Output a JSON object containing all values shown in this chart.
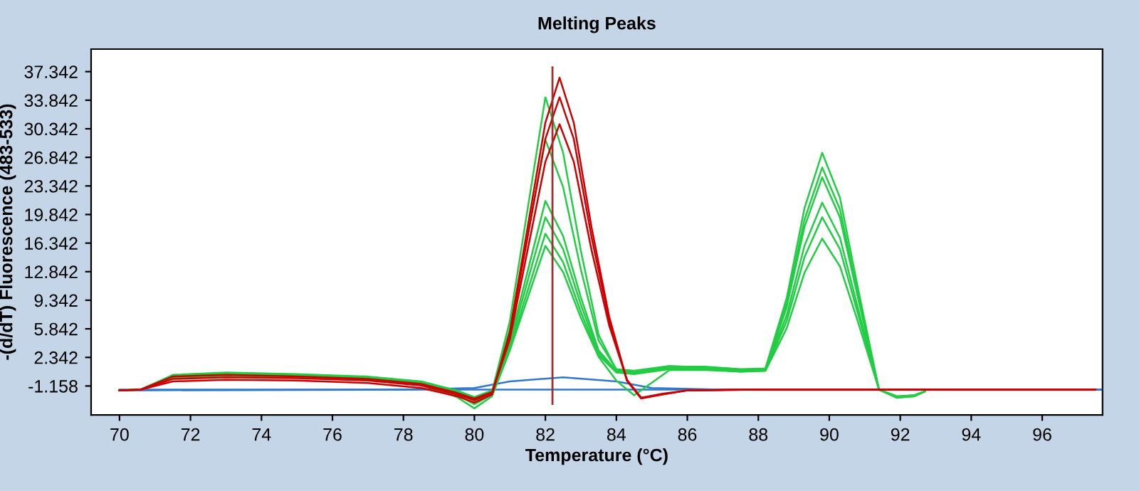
{
  "chart_data": {
    "type": "line",
    "title": "Melting Peaks",
    "xlabel": "Temperature (°C)",
    "ylabel": "-(d/dT) Fluorescence (483-533)",
    "xlim": [
      69.2,
      97.7
    ],
    "ylim": [
      -4.7,
      40.1
    ],
    "xticks": [
      70,
      72,
      74,
      76,
      78,
      80,
      82,
      84,
      86,
      88,
      90,
      92,
      94,
      96
    ],
    "yticks": [
      {
        "value": -1.158,
        "label": "-1.158"
      },
      {
        "value": 2.342,
        "label": "2.342"
      },
      {
        "value": 5.842,
        "label": "5.842"
      },
      {
        "value": 9.342,
        "label": "9.342"
      },
      {
        "value": 12.842,
        "label": "12.842"
      },
      {
        "value": 16.342,
        "label": "16.342"
      },
      {
        "value": 19.842,
        "label": "19.842"
      },
      {
        "value": 23.342,
        "label": "23.342"
      },
      {
        "value": 26.842,
        "label": "26.842"
      },
      {
        "value": 30.342,
        "label": "30.342"
      },
      {
        "value": 33.842,
        "label": "33.842"
      },
      {
        "value": 37.342,
        "label": "37.342"
      }
    ],
    "grid": false,
    "legend": false,
    "marker": "none",
    "line_style": "solid",
    "ref_lines": [
      {
        "axis": "x",
        "value": 82.2,
        "color": "#a03030"
      }
    ],
    "series": [
      {
        "color": "#3377cc",
        "x": [
          70,
          97.7
        ],
        "values": [
          -1.6,
          -1.6
        ]
      },
      {
        "color": "#3377cc",
        "x": [
          70,
          78,
          80,
          81,
          82.5,
          84,
          85,
          87,
          97.7
        ],
        "values": [
          -1.7,
          -1.6,
          -1.4,
          -0.6,
          -0.1,
          -0.6,
          -1.4,
          -1.6,
          -1.6
        ]
      },
      {
        "color": "#22cc44",
        "x": [
          70,
          70.6,
          71.5,
          73,
          75,
          77,
          78.5,
          79.5,
          80.0,
          80.5,
          81.0,
          81.5,
          82.0,
          82.5,
          83.0,
          83.5,
          84.0,
          84.5,
          85.5,
          86.5,
          87.5,
          88.2,
          88.8,
          89.3,
          89.8,
          90.3,
          90.8,
          91.4,
          91.9,
          92.4,
          92.7
        ],
        "values": [
          -1.7,
          -1.6,
          0.0,
          0.3,
          0.1,
          -0.2,
          -0.8,
          -1.8,
          -2.6,
          -1.8,
          6.8,
          20.5,
          34.2,
          27.4,
          15.4,
          5.1,
          0.8,
          0.6,
          1.2,
          1.2,
          0.9,
          1.0,
          9.6,
          20.6,
          27.4,
          21.9,
          11.0,
          -1.6,
          -2.5,
          -2.4,
          -1.8
        ]
      },
      {
        "color": "#22cc44",
        "x": [
          70,
          70.6,
          71.5,
          73,
          75,
          77,
          78.5,
          79.5,
          80.0,
          80.5,
          81.0,
          81.5,
          82.0,
          82.5,
          83.0,
          83.5,
          84.0,
          84.5,
          85.5,
          86.5,
          87.5,
          88.2,
          88.8,
          89.3,
          89.8,
          90.3,
          90.8,
          91.4,
          91.9,
          92.4,
          92.7
        ],
        "values": [
          -1.7,
          -1.6,
          0.1,
          0.4,
          0.2,
          -0.1,
          -0.7,
          -1.9,
          -2.8,
          -1.9,
          5.8,
          17.4,
          29.0,
          23.2,
          13.1,
          4.4,
          0.9,
          0.7,
          1.3,
          1.1,
          0.8,
          0.9,
          9.0,
          19.2,
          25.6,
          20.5,
          10.2,
          -1.6,
          -2.4,
          -2.3,
          -1.8
        ]
      },
      {
        "color": "#22cc44",
        "x": [
          70,
          70.6,
          71.5,
          73,
          75,
          77,
          78.5,
          79.5,
          80.0,
          80.5,
          81.0,
          81.5,
          82.0,
          82.5,
          83.0,
          83.5,
          84.0,
          84.5,
          85.5,
          86.5,
          87.5,
          88.2,
          88.8,
          89.3,
          89.8,
          90.3,
          90.8,
          91.4,
          91.9,
          92.4,
          92.7
        ],
        "values": [
          -1.7,
          -1.6,
          -0.1,
          0.2,
          0.0,
          -0.3,
          -0.9,
          -2.0,
          -3.0,
          -2.0,
          4.3,
          12.9,
          21.5,
          17.2,
          9.7,
          3.2,
          0.7,
          0.5,
          1.1,
          1.0,
          0.7,
          0.8,
          8.5,
          18.3,
          24.4,
          19.5,
          9.8,
          -1.6,
          -2.6,
          -2.4,
          -1.8
        ]
      },
      {
        "color": "#22cc44",
        "x": [
          70,
          70.6,
          71.5,
          73,
          75,
          77,
          78.5,
          79.5,
          80.0,
          80.5,
          81.0,
          81.5,
          82.0,
          82.5,
          83.0,
          83.5,
          84.0,
          84.5,
          85.5,
          86.5,
          87.5,
          88.2,
          88.8,
          89.3,
          89.8,
          90.3,
          90.8,
          91.4,
          91.9,
          92.4,
          92.7
        ],
        "values": [
          -1.7,
          -1.6,
          0.2,
          0.5,
          0.3,
          0.0,
          -0.6,
          -1.7,
          -2.5,
          -1.7,
          3.9,
          11.7,
          19.5,
          15.6,
          8.8,
          2.9,
          0.6,
          0.4,
          1.0,
          1.0,
          0.7,
          0.8,
          7.5,
          16.0,
          21.3,
          17.0,
          8.5,
          -1.6,
          -2.5,
          -2.3,
          -1.8
        ]
      },
      {
        "color": "#22cc44",
        "x": [
          70,
          70.6,
          71.5,
          73,
          75,
          77,
          78.5,
          79.5,
          80.0,
          80.5,
          81.0,
          81.5,
          82.0,
          82.5,
          83.0,
          83.5,
          84.0,
          84.5,
          85.5,
          86.5,
          87.5,
          88.2,
          88.8,
          89.3,
          89.8,
          90.3,
          90.8,
          91.4,
          91.9,
          92.4,
          92.7
        ],
        "values": [
          -1.7,
          -1.6,
          0.0,
          0.3,
          0.1,
          -0.2,
          -0.8,
          -2.2,
          -3.4,
          -2.2,
          3.5,
          10.5,
          17.5,
          14.0,
          7.9,
          2.6,
          0.5,
          0.3,
          0.9,
          0.9,
          0.6,
          0.7,
          6.8,
          14.6,
          19.5,
          15.6,
          7.8,
          -1.6,
          -2.6,
          -2.4,
          -1.8
        ]
      },
      {
        "color": "#22cc44",
        "x": [
          70,
          70.6,
          71.5,
          73,
          75,
          77,
          78.5,
          79.5,
          80.0,
          80.5,
          81.0,
          81.5,
          82.0,
          82.5,
          83.0,
          83.5,
          84.0,
          84.5,
          85.5,
          86.5,
          87.5,
          88.2,
          88.8,
          89.3,
          89.8,
          90.3,
          90.8,
          91.4,
          91.9,
          92.4,
          92.7
        ],
        "values": [
          -1.7,
          -1.6,
          -0.2,
          0.1,
          -0.1,
          -0.4,
          -1.0,
          -2.5,
          -3.9,
          -2.4,
          3.2,
          9.6,
          16.0,
          12.8,
          7.2,
          2.4,
          -0.5,
          -2.3,
          0.8,
          0.8,
          0.6,
          0.7,
          5.9,
          12.7,
          16.9,
          13.5,
          6.8,
          -1.6,
          -2.5,
          -2.3,
          -1.8
        ]
      },
      {
        "color": "#cc0000",
        "x": [
          70,
          70.6,
          71.5,
          73,
          75,
          77,
          78.5,
          79.5,
          80.0,
          80.5,
          81.0,
          81.5,
          82.0,
          82.4,
          82.8,
          83.3,
          83.8,
          84.3,
          84.7,
          85.3,
          86,
          88,
          90,
          92,
          94,
          96,
          97.5
        ],
        "values": [
          -1.7,
          -1.6,
          -0.6,
          -0.4,
          -0.5,
          -0.8,
          -1.4,
          -2.4,
          -3.2,
          -2.2,
          5.5,
          18.3,
          31.1,
          36.6,
          31.1,
          18.3,
          7.3,
          -0.5,
          -2.7,
          -2.2,
          -1.7,
          -1.6,
          -1.6,
          -1.6,
          -1.6,
          -1.6,
          -1.6
        ]
      },
      {
        "color": "#cc0000",
        "x": [
          70,
          70.6,
          71.5,
          73,
          75,
          77,
          78.5,
          79.5,
          80.0,
          80.5,
          81.0,
          81.5,
          82.0,
          82.4,
          82.8,
          83.3,
          83.8,
          84.3,
          84.7,
          85.3,
          86,
          88,
          90,
          92,
          94,
          96,
          97.5
        ],
        "values": [
          -1.7,
          -1.6,
          0.0,
          0.2,
          0.0,
          -0.3,
          -0.9,
          -2.0,
          -2.7,
          -1.9,
          5.1,
          17.1,
          29.1,
          34.2,
          29.1,
          17.1,
          6.8,
          -0.5,
          -2.6,
          -2.2,
          -1.7,
          -1.6,
          -1.6,
          -1.6,
          -1.6,
          -1.6,
          -1.6
        ]
      },
      {
        "color": "#cc0000",
        "x": [
          70,
          70.6,
          71.5,
          73,
          75,
          77,
          78.5,
          79.5,
          80.0,
          80.5,
          81.0,
          81.5,
          82.0,
          82.4,
          82.8,
          83.3,
          83.8,
          84.3,
          84.7,
          85.3,
          86,
          88,
          90,
          92,
          94,
          96,
          97.5
        ],
        "values": [
          -1.7,
          -1.6,
          -0.3,
          -0.1,
          -0.2,
          -0.5,
          -1.1,
          -2.2,
          -2.9,
          -2.0,
          4.6,
          15.5,
          26.3,
          30.9,
          26.3,
          15.5,
          6.2,
          -0.4,
          -2.6,
          -2.1,
          -1.7,
          -1.6,
          -1.6,
          -1.6,
          -1.6,
          -1.6,
          -1.6
        ]
      }
    ]
  }
}
